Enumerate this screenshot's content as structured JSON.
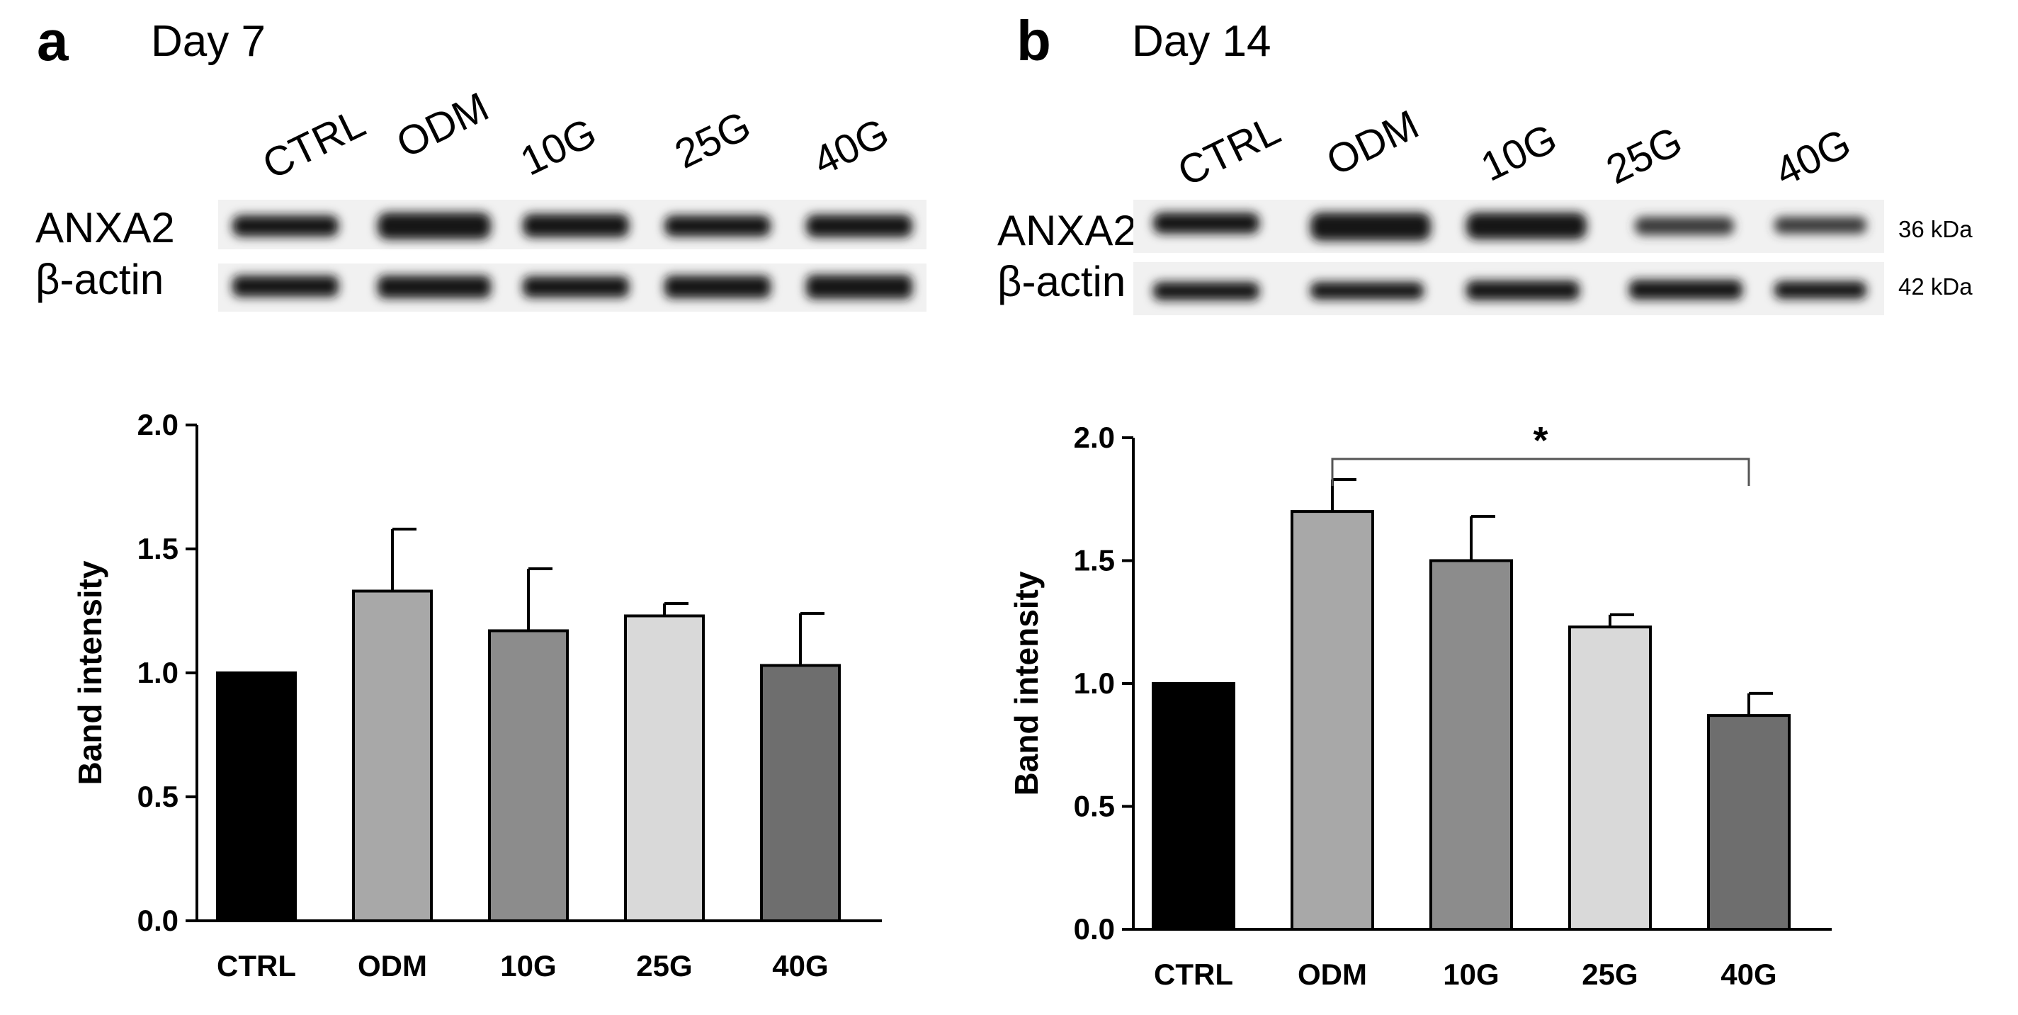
{
  "panels": [
    {
      "letter": "a",
      "day": "Day 7",
      "lanes": [
        "CTRL",
        "ODM",
        "10G",
        "25G",
        "40G"
      ],
      "rows": [
        "ANXA2",
        "β-actin"
      ],
      "kda": [],
      "chart_data": {
        "type": "bar",
        "categories": [
          "CTRL",
          "ODM",
          "10G",
          "25G",
          "40G"
        ],
        "values": [
          1.0,
          1.33,
          1.17,
          1.23,
          1.03
        ],
        "errors": [
          0.0,
          0.25,
          0.25,
          0.05,
          0.21
        ],
        "colors": [
          "#000000",
          "#a8a8a8",
          "#8c8c8c",
          "#d9d9d9",
          "#6e6e6e"
        ],
        "ylabel": "Band intensity",
        "ylim": [
          0,
          2.0
        ],
        "yticks": [
          "0.0",
          "0.5",
          "1.0",
          "1.5",
          "2.0"
        ],
        "grid": false,
        "significance": null
      }
    },
    {
      "letter": "b",
      "day": "Day 14",
      "lanes": [
        "CTRL",
        "ODM",
        "10G",
        "25G",
        "40G"
      ],
      "rows": [
        "ANXA2",
        "β-actin"
      ],
      "kda": [
        "36 kDa",
        "42 kDa"
      ],
      "chart_data": {
        "type": "bar",
        "categories": [
          "CTRL",
          "ODM",
          "10G",
          "25G",
          "40G"
        ],
        "values": [
          1.0,
          1.7,
          1.5,
          1.23,
          0.87
        ],
        "errors": [
          0.0,
          0.13,
          0.18,
          0.05,
          0.09
        ],
        "colors": [
          "#000000",
          "#a8a8a8",
          "#8c8c8c",
          "#d9d9d9",
          "#6e6e6e"
        ],
        "ylabel": "Band intensity",
        "ylim": [
          0,
          2.0
        ],
        "yticks": [
          "0.0",
          "0.5",
          "1.0",
          "1.5",
          "2.0"
        ],
        "grid": false,
        "significance": {
          "from": "ODM",
          "to": "40G",
          "symbol": "*"
        }
      }
    }
  ]
}
